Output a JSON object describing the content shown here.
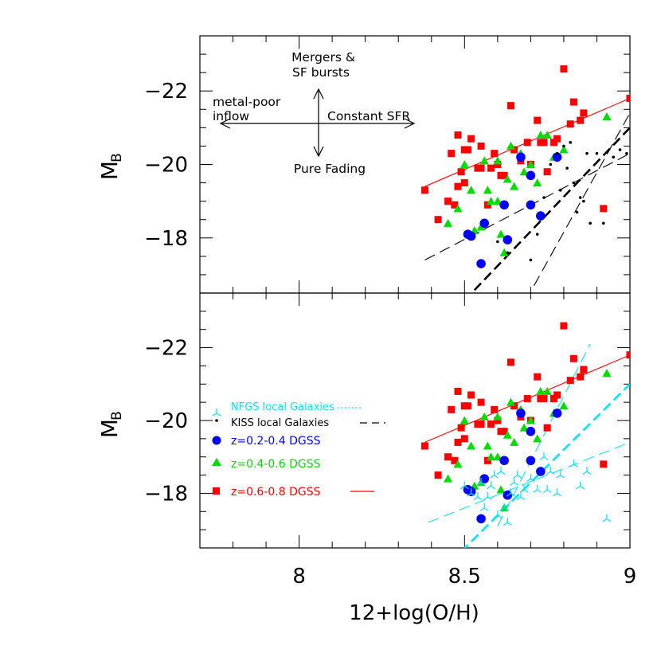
{
  "chart_data": [
    {
      "type": "scatter",
      "panel": "top",
      "xlim": [
        7.7,
        9.0
      ],
      "ylim": [
        -16.5,
        -23.5
      ],
      "y_inverted": true,
      "ylabel": "M",
      "ylabel_sub": "B",
      "xlabel": "",
      "y_ticks": [
        "-18",
        "-20",
        "-22"
      ],
      "annotations": {
        "up": "Mergers &",
        "up2": "SF bursts",
        "left": "metal-poor",
        "left2": "inflow",
        "right": "Constant SFR",
        "down": "Pure Fading"
      },
      "series": [
        {
          "marker": "square",
          "color": "#ff0000",
          "points": [
            [
              8.38,
              -19.3
            ],
            [
              8.42,
              -18.5
            ],
            [
              8.45,
              -19.0
            ],
            [
              8.46,
              -20.3
            ],
            [
              8.47,
              -18.9
            ],
            [
              8.48,
              -19.4
            ],
            [
              8.48,
              -20.8
            ],
            [
              8.49,
              -19.8
            ],
            [
              8.5,
              -20.4
            ],
            [
              8.5,
              -19.5
            ],
            [
              8.51,
              -20.4
            ],
            [
              8.52,
              -20.7
            ],
            [
              8.54,
              -19.9
            ],
            [
              8.55,
              -19.9
            ],
            [
              8.55,
              -20.5
            ],
            [
              8.57,
              -18.9
            ],
            [
              8.58,
              -19.9
            ],
            [
              8.59,
              -20.3
            ],
            [
              8.6,
              -20.0
            ],
            [
              8.61,
              -19.7
            ],
            [
              8.62,
              -19.7
            ],
            [
              8.64,
              -21.6
            ],
            [
              8.65,
              -20.4
            ],
            [
              8.67,
              -20.1
            ],
            [
              8.69,
              -20.6
            ],
            [
              8.7,
              -20.0
            ],
            [
              8.72,
              -21.2
            ],
            [
              8.73,
              -20.6
            ],
            [
              8.74,
              -20.6
            ],
            [
              8.75,
              -19.8
            ],
            [
              8.77,
              -20.6
            ],
            [
              8.78,
              -20.7
            ],
            [
              8.8,
              -22.6
            ],
            [
              8.82,
              -21.1
            ],
            [
              8.83,
              -21.7
            ],
            [
              8.85,
              -21.2
            ],
            [
              8.86,
              -21.4
            ],
            [
              8.92,
              -18.8
            ],
            [
              9.0,
              -21.8
            ]
          ]
        },
        {
          "marker": "triangle",
          "color": "#00dd00",
          "points": [
            [
              8.45,
              -18.4
            ],
            [
              8.48,
              -18.8
            ],
            [
              8.5,
              -20.0
            ],
            [
              8.52,
              -19.3
            ],
            [
              8.53,
              -18.2
            ],
            [
              8.55,
              -18.3
            ],
            [
              8.56,
              -20.1
            ],
            [
              8.57,
              -19.3
            ],
            [
              8.58,
              -19.0
            ],
            [
              8.6,
              -20.1
            ],
            [
              8.6,
              -19.0
            ],
            [
              8.61,
              -18.1
            ],
            [
              8.62,
              -17.6
            ],
            [
              8.63,
              -19.6
            ],
            [
              8.64,
              -20.5
            ],
            [
              8.65,
              -19.4
            ],
            [
              8.67,
              -20.3
            ],
            [
              8.68,
              -19.8
            ],
            [
              8.7,
              -20.0
            ],
            [
              8.72,
              -19.5
            ],
            [
              8.73,
              -20.8
            ],
            [
              8.75,
              -20.8
            ],
            [
              8.77,
              -20.2
            ],
            [
              8.8,
              -20.4
            ],
            [
              8.93,
              -21.3
            ]
          ]
        },
        {
          "marker": "circle",
          "color": "#0000ff",
          "points": [
            [
              8.51,
              -18.1
            ],
            [
              8.52,
              -18.05
            ],
            [
              8.55,
              -17.3
            ],
            [
              8.56,
              -18.4
            ],
            [
              8.62,
              -18.9
            ],
            [
              8.63,
              -17.95
            ],
            [
              8.67,
              -20.2
            ],
            [
              8.7,
              -19.7
            ],
            [
              8.7,
              -18.9
            ],
            [
              8.73,
              -18.6
            ],
            [
              8.78,
              -20.2
            ]
          ]
        },
        {
          "marker": "dot",
          "color": "#000000",
          "points": [
            [
              8.6,
              -17.9
            ],
            [
              8.63,
              -17.6
            ],
            [
              8.7,
              -17.4
            ],
            [
              8.72,
              -18.1
            ],
            [
              8.74,
              -19.1
            ],
            [
              8.76,
              -20.0
            ],
            [
              8.78,
              -20.3
            ],
            [
              8.79,
              -19.3
            ],
            [
              8.8,
              -20.5
            ],
            [
              8.81,
              -19.9
            ],
            [
              8.82,
              -20.6
            ],
            [
              8.83,
              -19.5
            ],
            [
              8.84,
              -18.7
            ],
            [
              8.85,
              -19.1
            ],
            [
              8.86,
              -19.0
            ],
            [
              8.87,
              -20.3
            ],
            [
              8.88,
              -18.4
            ],
            [
              8.9,
              -20.3
            ],
            [
              8.92,
              -18.4
            ],
            [
              8.95,
              -20.2
            ],
            [
              8.97,
              -20.4
            ],
            [
              8.99,
              -20.3
            ]
          ]
        }
      ],
      "lines": [
        {
          "color": "#ff0000",
          "dash": "solid",
          "from": [
            8.38,
            -19.4
          ],
          "to": [
            9.0,
            -21.8
          ]
        },
        {
          "color": "#000000",
          "dash": "long",
          "from": [
            8.38,
            -17.4
          ],
          "to": [
            9.0,
            -20.3
          ]
        },
        {
          "color": "#000000",
          "dash": "long",
          "from": [
            8.71,
            -16.7
          ],
          "to": [
            9.0,
            -21.4
          ]
        },
        {
          "color": "#000000",
          "dash": "thick",
          "from": [
            8.5,
            -16.3
          ],
          "to": [
            9.0,
            -21.0
          ]
        }
      ]
    },
    {
      "type": "scatter",
      "panel": "bottom",
      "xlim": [
        7.7,
        9.0
      ],
      "ylim": [
        -16.5,
        -23.5
      ],
      "y_inverted": true,
      "ylabel": "M",
      "ylabel_sub": "B",
      "xlabel": "12+log(O/H)",
      "x_ticks": [
        "8",
        "8.5",
        "9"
      ],
      "y_ticks": [
        "-18",
        "-20",
        "-22"
      ],
      "legend": [
        {
          "label": "NFGS local Galaxies",
          "color": "#00e5ff",
          "marker": "tripod",
          "line": "dotted"
        },
        {
          "label": "KISS local Galaxies",
          "color": "#000000",
          "marker": "dot",
          "line": "dashed"
        },
        {
          "label": "z=0.2-0.4  DGSS",
          "color": "#0000ff",
          "marker": "circle",
          "line": "none"
        },
        {
          "label": "z=0.4-0.6  DGSS",
          "color": "#00dd00",
          "marker": "triangle",
          "line": "none"
        },
        {
          "label": "z=0.6-0.8  DGSS",
          "color": "#ff0000",
          "marker": "square",
          "line": "solid"
        }
      ],
      "series": [
        {
          "marker": "square",
          "color": "#ff0000",
          "points": [
            [
              8.38,
              -19.3
            ],
            [
              8.42,
              -18.5
            ],
            [
              8.45,
              -19.0
            ],
            [
              8.46,
              -20.3
            ],
            [
              8.47,
              -18.9
            ],
            [
              8.48,
              -19.4
            ],
            [
              8.48,
              -20.8
            ],
            [
              8.49,
              -19.8
            ],
            [
              8.5,
              -20.4
            ],
            [
              8.5,
              -19.5
            ],
            [
              8.51,
              -20.4
            ],
            [
              8.52,
              -20.7
            ],
            [
              8.54,
              -19.9
            ],
            [
              8.55,
              -19.9
            ],
            [
              8.55,
              -20.5
            ],
            [
              8.57,
              -18.9
            ],
            [
              8.58,
              -19.9
            ],
            [
              8.59,
              -20.3
            ],
            [
              8.6,
              -20.0
            ],
            [
              8.61,
              -19.7
            ],
            [
              8.62,
              -19.7
            ],
            [
              8.64,
              -21.6
            ],
            [
              8.65,
              -20.4
            ],
            [
              8.67,
              -20.1
            ],
            [
              8.69,
              -20.6
            ],
            [
              8.7,
              -20.0
            ],
            [
              8.72,
              -21.2
            ],
            [
              8.73,
              -20.6
            ],
            [
              8.74,
              -20.6
            ],
            [
              8.75,
              -19.8
            ],
            [
              8.77,
              -20.6
            ],
            [
              8.78,
              -20.7
            ],
            [
              8.8,
              -22.6
            ],
            [
              8.82,
              -21.1
            ],
            [
              8.83,
              -21.7
            ],
            [
              8.85,
              -21.2
            ],
            [
              8.86,
              -21.4
            ],
            [
              8.92,
              -18.8
            ],
            [
              9.0,
              -21.8
            ]
          ]
        },
        {
          "marker": "triangle",
          "color": "#00dd00",
          "points": [
            [
              8.45,
              -18.4
            ],
            [
              8.48,
              -18.8
            ],
            [
              8.5,
              -20.0
            ],
            [
              8.52,
              -19.3
            ],
            [
              8.53,
              -18.2
            ],
            [
              8.55,
              -18.3
            ],
            [
              8.56,
              -20.1
            ],
            [
              8.57,
              -19.3
            ],
            [
              8.58,
              -19.0
            ],
            [
              8.6,
              -20.1
            ],
            [
              8.6,
              -19.0
            ],
            [
              8.61,
              -18.1
            ],
            [
              8.62,
              -17.6
            ],
            [
              8.63,
              -19.6
            ],
            [
              8.64,
              -20.5
            ],
            [
              8.65,
              -19.4
            ],
            [
              8.67,
              -20.3
            ],
            [
              8.68,
              -19.8
            ],
            [
              8.7,
              -20.0
            ],
            [
              8.72,
              -19.5
            ],
            [
              8.73,
              -20.8
            ],
            [
              8.75,
              -20.8
            ],
            [
              8.77,
              -20.2
            ],
            [
              8.8,
              -20.4
            ],
            [
              8.93,
              -21.3
            ]
          ]
        },
        {
          "marker": "circle",
          "color": "#0000ff",
          "points": [
            [
              8.51,
              -18.1
            ],
            [
              8.52,
              -18.05
            ],
            [
              8.55,
              -17.3
            ],
            [
              8.56,
              -18.4
            ],
            [
              8.62,
              -18.9
            ],
            [
              8.63,
              -17.95
            ],
            [
              8.67,
              -20.2
            ],
            [
              8.7,
              -19.7
            ],
            [
              8.7,
              -18.9
            ],
            [
              8.73,
              -18.6
            ],
            [
              8.78,
              -20.2
            ]
          ]
        },
        {
          "marker": "tripod",
          "color": "#00e5ff",
          "points": [
            [
              8.5,
              -18.2
            ],
            [
              8.52,
              -18.0
            ],
            [
              8.54,
              -17.9
            ],
            [
              8.55,
              -18.3
            ],
            [
              8.56,
              -17.6
            ],
            [
              8.57,
              -17.9
            ],
            [
              8.58,
              -18.2
            ],
            [
              8.59,
              -18.5
            ],
            [
              8.6,
              -17.4
            ],
            [
              8.61,
              -18.6
            ],
            [
              8.62,
              -17.6
            ],
            [
              8.63,
              -17.2
            ],
            [
              8.64,
              -18.0
            ],
            [
              8.65,
              -18.3
            ],
            [
              8.66,
              -18.5
            ],
            [
              8.67,
              -17.9
            ],
            [
              8.68,
              -18.1
            ],
            [
              8.7,
              -18.4
            ],
            [
              8.72,
              -18.1
            ],
            [
              8.74,
              -19.0
            ],
            [
              8.75,
              -18.1
            ],
            [
              8.76,
              -18.6
            ],
            [
              8.78,
              -18.0
            ],
            [
              8.79,
              -18.5
            ],
            [
              8.83,
              -18.8
            ],
            [
              8.85,
              -18.2
            ],
            [
              8.87,
              -18.6
            ],
            [
              8.93,
              -17.3
            ]
          ]
        }
      ],
      "lines": [
        {
          "color": "#ff0000",
          "dash": "solid",
          "from": [
            8.38,
            -19.4
          ],
          "to": [
            9.0,
            -21.8
          ]
        },
        {
          "color": "#00e5ff",
          "dash": "long",
          "from": [
            8.39,
            -17.2
          ],
          "to": [
            9.0,
            -19.4
          ]
        },
        {
          "color": "#00e5ff",
          "dash": "thick",
          "from": [
            8.49,
            -16.4
          ],
          "to": [
            9.0,
            -21.0
          ]
        },
        {
          "color": "#00e5ff",
          "dash": "long",
          "from": [
            8.6,
            -17.1
          ],
          "to": [
            8.88,
            -22.1
          ]
        }
      ]
    }
  ]
}
